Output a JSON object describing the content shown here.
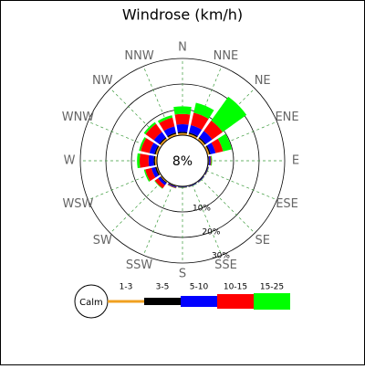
{
  "chart_data": {
    "type": "windrose",
    "title": "Windrose (km/h)",
    "categories": [
      "N",
      "NNE",
      "NE",
      "ENE",
      "E",
      "ESE",
      "SE",
      "SSE",
      "S",
      "SSW",
      "SW",
      "WSW",
      "W",
      "WNW",
      "NW",
      "NNW"
    ],
    "series": [
      {
        "name": "1-3",
        "color": "#f0a020",
        "values": [
          0.8,
          0.8,
          0.8,
          0.8,
          0.3,
          0.2,
          0.2,
          0.2,
          0.2,
          0.3,
          0.5,
          0.5,
          0.8,
          0.8,
          0.8,
          0.8
        ]
      },
      {
        "name": "3-5",
        "color": "#000000",
        "values": [
          0.5,
          0.5,
          0.5,
          0.5,
          0.2,
          0.1,
          0.1,
          0.1,
          0.1,
          0.2,
          0.3,
          0.5,
          0.5,
          0.5,
          0.5,
          0.5
        ]
      },
      {
        "name": "5-10",
        "color": "#0000ff",
        "values": [
          3,
          3,
          3,
          2,
          0.5,
          0.2,
          0.2,
          0.2,
          0.2,
          0.3,
          1,
          1.5,
          2,
          2,
          2.5,
          2.5
        ]
      },
      {
        "name": "10-15",
        "color": "#ff0000",
        "values": [
          4,
          5,
          5,
          3,
          0.3,
          0.1,
          0.1,
          0.1,
          0.1,
          0.2,
          1.5,
          2.5,
          3.5,
          3.5,
          4,
          3.5
        ]
      },
      {
        "name": "15-25",
        "color": "#00ff00",
        "values": [
          3,
          4,
          11.5,
          3.5,
          0.3,
          0.1,
          0.1,
          0.1,
          0.1,
          0.1,
          0.2,
          0.5,
          1,
          0.7,
          0.8,
          1
        ]
      }
    ],
    "calm": {
      "name": "Calm",
      "value": 8,
      "value_label": "8%"
    },
    "rlim": [
      0,
      30
    ],
    "rticks": [
      {
        "value": 10,
        "label": "10%"
      },
      {
        "value": 20,
        "label": "20%"
      },
      {
        "value": 30,
        "label": "30%"
      }
    ],
    "grid": true
  }
}
